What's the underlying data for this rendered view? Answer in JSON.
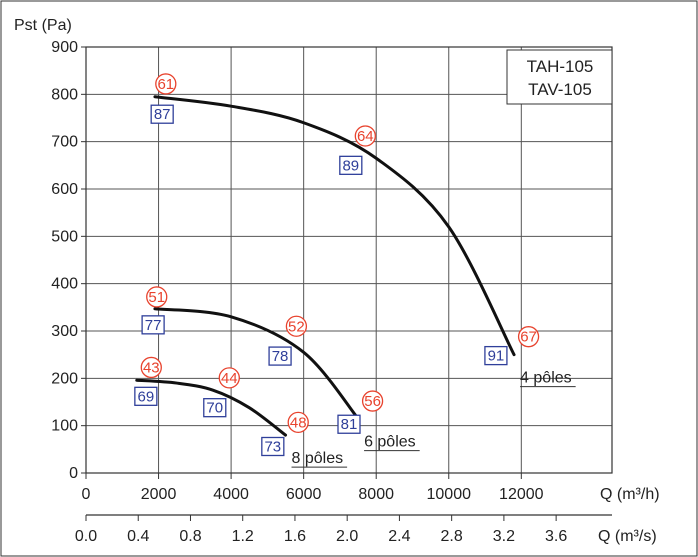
{
  "chart_data": {
    "type": "line",
    "title": "",
    "ylabel": "Pst (Pa)",
    "xlabel": "Q (m³/h)",
    "x2label": "Q (m³/s)",
    "xlim": [
      0,
      14500
    ],
    "ylim": [
      0,
      900
    ],
    "x2lim": [
      0,
      4.0278
    ],
    "x_ticks": [
      0,
      2000,
      4000,
      6000,
      8000,
      10000,
      12000
    ],
    "y_ticks": [
      0,
      100,
      200,
      300,
      400,
      500,
      600,
      700,
      800,
      900
    ],
    "x2_ticks": [
      {
        "v": 0.0,
        "label": "0.0"
      },
      {
        "v": 0.4,
        "label": "0.4"
      },
      {
        "v": 0.8,
        "label": "0.8"
      },
      {
        "v": 1.2,
        "label": "1.2"
      },
      {
        "v": 1.6,
        "label": "1.6"
      },
      {
        "v": 2.0,
        "label": "2.0"
      },
      {
        "v": 2.4,
        "label": "2.4"
      },
      {
        "v": 2.8,
        "label": "2.8"
      },
      {
        "v": 3.2,
        "label": "3.2"
      },
      {
        "v": 3.6,
        "label": "3.6"
      }
    ],
    "grid": true,
    "legend_text": [
      "TAH-105",
      "TAV-105"
    ],
    "legend_position": "top-right",
    "series": [
      {
        "name": "4 pôles",
        "x": [
          1900,
          4000,
          6000,
          8000,
          10000,
          11800
        ],
        "y": [
          795,
          775,
          740,
          665,
          520,
          250
        ]
      },
      {
        "name": "6 pôles",
        "x": [
          1900,
          4000,
          6000,
          7500
        ],
        "y": [
          347,
          330,
          255,
          115
        ]
      },
      {
        "name": "8 pôles",
        "x": [
          1400,
          2500,
          3500,
          4500,
          5500
        ],
        "y": [
          196,
          190,
          175,
          138,
          80
        ]
      }
    ],
    "circle_annotations": [
      {
        "label": "61",
        "x": 2200,
        "y": 822
      },
      {
        "label": "64",
        "x": 7700,
        "y": 712
      },
      {
        "label": "67",
        "x": 12200,
        "y": 288
      },
      {
        "label": "51",
        "x": 1950,
        "y": 372
      },
      {
        "label": "52",
        "x": 5800,
        "y": 310
      },
      {
        "label": "56",
        "x": 7900,
        "y": 152
      },
      {
        "label": "43",
        "x": 1800,
        "y": 223
      },
      {
        "label": "44",
        "x": 3950,
        "y": 201
      },
      {
        "label": "48",
        "x": 5850,
        "y": 107
      }
    ],
    "box_annotations": [
      {
        "label": "87",
        "x": 2100,
        "y": 758
      },
      {
        "label": "89",
        "x": 7300,
        "y": 650
      },
      {
        "label": "91",
        "x": 11300,
        "y": 248
      },
      {
        "label": "77",
        "x": 1850,
        "y": 313
      },
      {
        "label": "78",
        "x": 5350,
        "y": 247
      },
      {
        "label": "81",
        "x": 7250,
        "y": 103
      },
      {
        "label": "69",
        "x": 1650,
        "y": 162
      },
      {
        "label": "70",
        "x": 3550,
        "y": 138
      },
      {
        "label": "73",
        "x": 5150,
        "y": 56
      }
    ],
    "colors": {
      "circle": "#e8432e",
      "box": "#2f3f9a",
      "curve": "#111111",
      "grid": "#555555"
    }
  }
}
